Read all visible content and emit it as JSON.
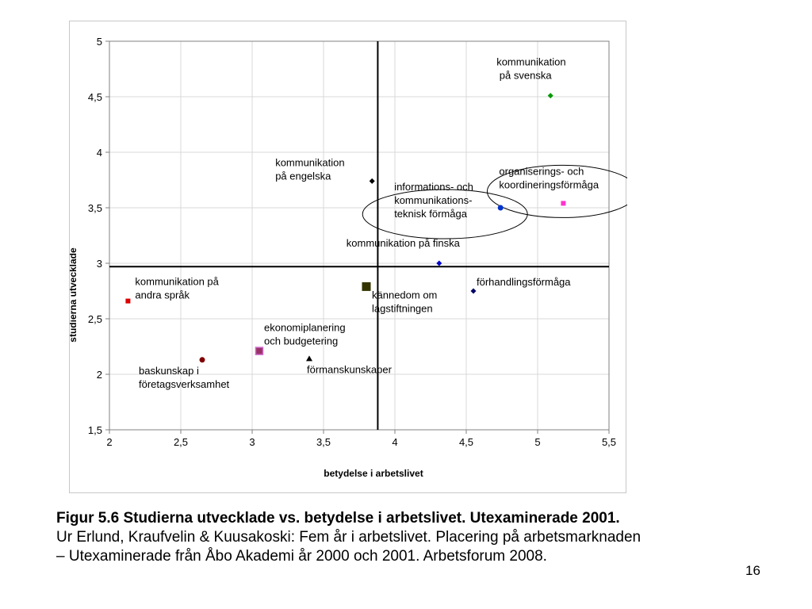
{
  "chart_data": {
    "type": "scatter",
    "title": "",
    "xlabel": "betydelse i arbetslivet",
    "ylabel": "studierna utvecklade",
    "xlim": [
      2,
      5.5
    ],
    "ylim": [
      1.5,
      5
    ],
    "x_ticks": [
      "2",
      "2,5",
      "3",
      "3,5",
      "4",
      "4,5",
      "5",
      "5,5"
    ],
    "y_ticks": [
      "1,5",
      "2",
      "2,5",
      "3",
      "3,5",
      "4",
      "4,5",
      "5"
    ],
    "grid": true,
    "reference_lines": {
      "x": 3.88,
      "y": 2.97
    },
    "points": [
      {
        "x": 5.09,
        "y": 4.51,
        "label": [
          "kommunikation",
          " på svenska"
        ],
        "shape": "diamond",
        "color": "#009900"
      },
      {
        "x": 3.84,
        "y": 3.74,
        "label": [
          "kommunikation",
          "på engelska"
        ],
        "shape": "diamond",
        "color": "#000000"
      },
      {
        "x": 4.74,
        "y": 3.5,
        "label": [
          "informations- och",
          "kommunikations-",
          "teknisk förmåga"
        ],
        "shape": "circle",
        "color": "#0033cc"
      },
      {
        "x": 5.18,
        "y": 3.54,
        "label": [
          "organiserings- och",
          "koordineringsförmåga"
        ],
        "shape": "square",
        "color": "#ff33cc"
      },
      {
        "x": 4.31,
        "y": 3.0,
        "label": [
          "kommunikation på finska"
        ],
        "shape": "diamond",
        "color": "#0000cc"
      },
      {
        "x": 4.55,
        "y": 2.75,
        "label": [
          "förhandlingsförmåga"
        ],
        "shape": "diamond",
        "color": "#000066"
      },
      {
        "x": 3.8,
        "y": 2.79,
        "label": [
          "kännedom om",
          "lagstiftningen"
        ],
        "shape": "square",
        "color": "#333300"
      },
      {
        "x": 2.13,
        "y": 2.66,
        "label": [
          "kommunikation på",
          "andra språk"
        ],
        "shape": "square",
        "color": "#dd0000"
      },
      {
        "x": 3.05,
        "y": 2.21,
        "label": [
          "ekonomiplanering",
          "och budgetering"
        ],
        "shape": "square",
        "color": "#993366"
      },
      {
        "x": 3.4,
        "y": 2.14,
        "label": [
          "förmanskunskaper"
        ],
        "shape": "triangle",
        "color": "#000000"
      },
      {
        "x": 2.65,
        "y": 2.13,
        "label": [
          "baskunskap i",
          "företagsverksamhet"
        ],
        "shape": "circle",
        "color": "#800000"
      }
    ]
  },
  "caption": {
    "line1": "Figur 5.6 Studierna utvecklade vs. betydelse i arbetslivet. Utexaminerade 2001.",
    "line2": "Ur Erlund, Kraufvelin & Kuusakoski: Fem år i arbetslivet. Placering på arbetsmarknaden",
    "line3": " – Utexaminerade från Åbo Akademi år 2000 och 2001. Arbetsforum 2008."
  },
  "slide_number": "16"
}
